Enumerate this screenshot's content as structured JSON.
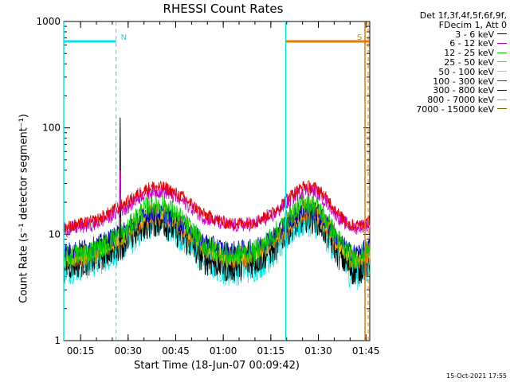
{
  "chart_data": {
    "type": "line",
    "title": "RHESSI Count Rates",
    "xlabel": "Start Time (18-Jun-07 00:09:42)",
    "ylabel": "Count Rate (s⁻¹ detector segment⁻¹)",
    "y_scale": "log",
    "ylim": [
      1,
      1000
    ],
    "y_ticks": [
      "1",
      "10",
      "100",
      "1000"
    ],
    "x_range_minutes": [
      0.0,
      96.5
    ],
    "x_ticks": [
      {
        "label": "00:15",
        "minute": 15
      },
      {
        "label": "00:30",
        "minute": 30
      },
      {
        "label": "00:45",
        "minute": 45
      },
      {
        "label": "01:00",
        "minute": 60
      },
      {
        "label": "01:15",
        "minute": 75
      },
      {
        "label": "01:30",
        "minute": 90
      },
      {
        "label": "01:45",
        "minute": 105
      }
    ],
    "legend_header": [
      "Det 1f,3f,4f,5f,6f,9f,",
      "FDecim 1, Att 0"
    ],
    "series": [
      {
        "name": "3 - 6 keV",
        "color": "#000000",
        "x": [
          0,
          10,
          20,
          25,
          28,
          32,
          38,
          44,
          52,
          60,
          66,
          72,
          76,
          80,
          84,
          87,
          90,
          92,
          94,
          96
        ],
        "y": [
          5.2,
          6.0,
          9.0,
          12.5,
          13.5,
          13.0,
          9.5,
          6.0,
          5.0,
          5.6,
          7.5,
          12.5,
          15.0,
          14.0,
          9.5,
          6.5,
          5.0,
          4.6,
          5.0,
          5.5
        ]
      },
      {
        "name": "6 - 12 keV",
        "color": "#cc00cc",
        "x": [
          0,
          10,
          20,
          25,
          28,
          32,
          38,
          44,
          52,
          60,
          66,
          72,
          76,
          80,
          84,
          87,
          90,
          92,
          94,
          96
        ],
        "y": [
          11.0,
          12.5,
          18.0,
          24.0,
          26.0,
          25.0,
          20.0,
          14.5,
          12.0,
          12.5,
          15.0,
          22.0,
          26.5,
          25.0,
          18.5,
          14.0,
          12.0,
          11.5,
          12.0,
          12.5
        ]
      },
      {
        "name": "12 - 25 keV",
        "color": "#00cc00",
        "x": [
          0,
          10,
          20,
          25,
          28,
          32,
          38,
          44,
          52,
          60,
          66,
          72,
          76,
          80,
          84,
          87,
          90,
          92,
          94,
          96
        ],
        "y": [
          6.0,
          7.0,
          11.0,
          17.0,
          19.5,
          18.5,
          13.0,
          8.0,
          6.3,
          6.8,
          9.5,
          16.0,
          20.0,
          18.5,
          12.0,
          8.5,
          6.5,
          6.0,
          6.5,
          7.0
        ]
      },
      {
        "name": "25 - 50 keV",
        "color": "#00e5e5",
        "x": [
          0,
          10,
          20,
          25,
          28,
          32,
          38,
          44,
          52,
          60,
          66,
          72,
          76,
          80,
          84,
          87,
          90,
          92,
          94,
          96
        ],
        "y": [
          4.6,
          5.5,
          8.0,
          11.5,
          13.0,
          12.5,
          9.0,
          5.8,
          4.5,
          4.9,
          6.5,
          11.0,
          13.5,
          12.5,
          8.5,
          6.0,
          4.5,
          4.1,
          4.4,
          4.8
        ]
      },
      {
        "name": "50 - 100 keV",
        "color": "#e5c800",
        "x": [
          0,
          10,
          20,
          25,
          28,
          32,
          38,
          44,
          52,
          60,
          66,
          72,
          76,
          80,
          84,
          87,
          90,
          92,
          94,
          96
        ],
        "y": [
          6.0,
          6.8,
          10.5,
          15.0,
          17.0,
          16.5,
          12.0,
          8.0,
          6.2,
          6.6,
          9.0,
          14.5,
          18.0,
          17.0,
          11.5,
          8.0,
          6.3,
          5.9,
          6.3,
          6.7
        ]
      },
      {
        "name": "100 - 300 keV",
        "color": "#e50000",
        "x": [
          0,
          10,
          20,
          25,
          28,
          32,
          38,
          44,
          52,
          60,
          66,
          72,
          76,
          80,
          84,
          87,
          90,
          92,
          94,
          96
        ],
        "y": [
          11.5,
          13.5,
          20.0,
          26.0,
          28.0,
          27.5,
          22.0,
          15.5,
          12.5,
          13.0,
          16.0,
          24.0,
          28.5,
          27.0,
          20.0,
          15.0,
          12.5,
          12.0,
          12.5,
          13.0
        ]
      },
      {
        "name": "300 - 800 keV",
        "color": "#0000cc",
        "x": [
          0,
          10,
          20,
          25,
          28,
          32,
          38,
          44,
          52,
          60,
          66,
          72,
          76,
          80,
          84,
          87,
          90,
          92,
          94,
          96
        ],
        "y": [
          6.8,
          7.8,
          11.0,
          14.5,
          16.0,
          15.5,
          12.0,
          8.5,
          7.0,
          7.4,
          9.5,
          14.0,
          17.0,
          16.0,
          11.5,
          8.5,
          7.0,
          6.6,
          7.0,
          7.5
        ]
      },
      {
        "name": "800 - 7000 keV",
        "color": "#ff8800",
        "x": [
          0,
          10,
          20,
          25,
          28,
          32,
          38,
          44,
          52,
          60,
          66,
          72,
          76,
          80,
          84,
          87,
          90,
          92,
          94,
          96
        ],
        "y": [
          5.8,
          6.6,
          9.8,
          13.5,
          15.0,
          14.5,
          11.0,
          7.6,
          6.0,
          6.4,
          8.5,
          13.0,
          16.0,
          15.0,
          10.5,
          7.6,
          6.0,
          5.7,
          6.1,
          6.5
        ]
      },
      {
        "name": "7000 - 15000 keV",
        "color": "#806000",
        "x": [
          0,
          10,
          20,
          25,
          28,
          32,
          38,
          44,
          52,
          60,
          66,
          72,
          76,
          80,
          84,
          87,
          90,
          92,
          94,
          96
        ],
        "y": [
          5.5,
          6.3,
          9.5,
          13.0,
          14.5,
          14.0,
          10.5,
          7.2,
          5.8,
          6.2,
          8.2,
          12.5,
          15.5,
          14.5,
          10.0,
          7.3,
          5.8,
          5.5,
          5.9,
          6.3
        ]
      }
    ],
    "spikes": [
      {
        "series": "3 - 6 keV",
        "x": 17.8,
        "y": 125
      },
      {
        "series": "6 - 12 keV",
        "x": 17.8,
        "y": 40
      }
    ],
    "attenuator_markers": [
      {
        "label": "N",
        "color": "#00e5e5",
        "x_start": 0.0,
        "x_end": 16.5,
        "y": 650,
        "dashed_at": 16.5
      },
      {
        "label": "S",
        "color": "#e57a00",
        "x_start": 70.0,
        "x_end": 96.3,
        "y": 650,
        "dashed_at": 96.0
      }
    ],
    "vertical_lines": [
      {
        "x": 0.0,
        "color": "#00e5e5",
        "style": "solid"
      },
      {
        "x": 70.0,
        "color": "#00e5e5",
        "style": "solid"
      },
      {
        "x": 95.0,
        "color": "#e57a00",
        "style": "solid"
      }
    ],
    "timestamp": "15-Oct-2021 17:55"
  }
}
